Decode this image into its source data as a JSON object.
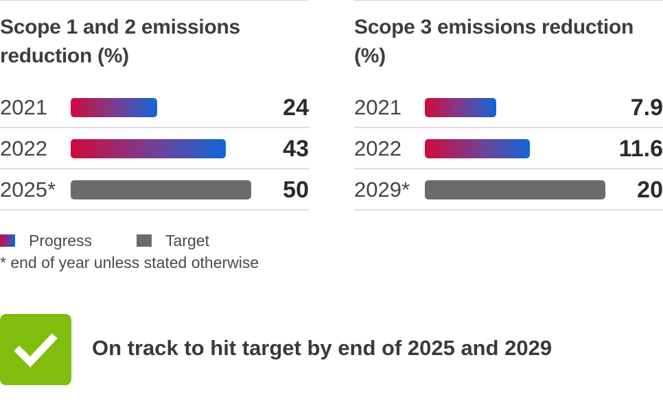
{
  "chart_data": [
    {
      "type": "bar",
      "orientation": "horizontal",
      "title": "Scope 1 and 2 emissions reduction (%)",
      "categories": [
        "2021",
        "2022",
        "2025*"
      ],
      "values": [
        24,
        43,
        50
      ],
      "kinds": [
        "progress",
        "progress",
        "target"
      ],
      "value_labels": [
        "24",
        "43",
        "50"
      ],
      "xlim": [
        0,
        50
      ]
    },
    {
      "type": "bar",
      "orientation": "horizontal",
      "title": "Scope 3 emissions reduction (%)",
      "categories": [
        "2021",
        "2022",
        "2029*"
      ],
      "values": [
        7.9,
        11.6,
        20
      ],
      "kinds": [
        "progress",
        "progress",
        "target"
      ],
      "value_labels": [
        "7.9",
        "11.6",
        "20"
      ],
      "xlim": [
        0,
        20
      ]
    }
  ],
  "legend": {
    "progress_label": "Progress",
    "target_label": "Target"
  },
  "footnote": "* end of year unless stated otherwise",
  "status": {
    "icon": "checkmark-icon",
    "color": "#80bd0f",
    "text": "On track to hit target by end of 2025 and 2029"
  }
}
